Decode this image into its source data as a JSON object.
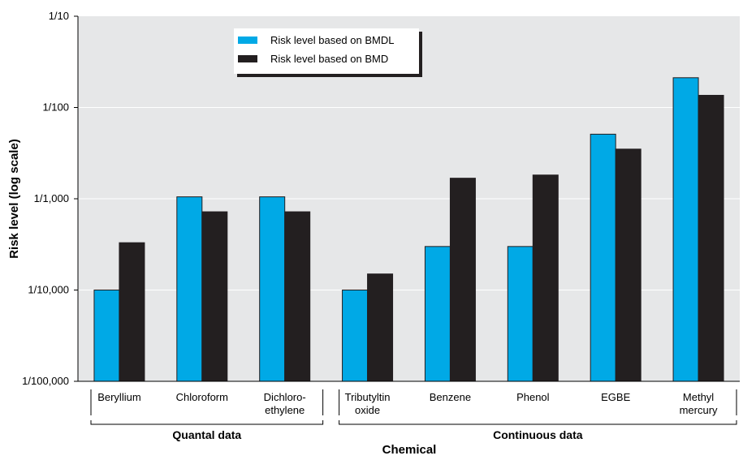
{
  "chart_data": {
    "type": "bar",
    "scale": "log",
    "title": "",
    "xlabel": "Chemical",
    "ylabel": "Risk level (log scale)",
    "ylim": [
      1e-05,
      0.1
    ],
    "y_ticks": [
      {
        "value": 0.1,
        "label": "1/10"
      },
      {
        "value": 0.01,
        "label": "1/100"
      },
      {
        "value": 0.001,
        "label": "1/1,000"
      },
      {
        "value": 0.0001,
        "label": "1/10,000"
      },
      {
        "value": 1e-05,
        "label": "1/100,000"
      }
    ],
    "categories": [
      [
        "Beryllium"
      ],
      [
        "Chloroform"
      ],
      [
        "Dichloro-",
        "ethylene"
      ],
      [
        "Tributyltin",
        "oxide"
      ],
      [
        "Benzene"
      ],
      [
        "Phenol"
      ],
      [
        "EGBE"
      ],
      [
        "Methyl",
        "mercury"
      ]
    ],
    "series": [
      {
        "name": "Risk level based on BMDL",
        "color": "#00a9e6",
        "values": [
          0.0001,
          0.00105,
          0.00105,
          0.0001,
          0.0003,
          0.0003,
          0.0051,
          0.0212
        ]
      },
      {
        "name": "Risk level based on BMD",
        "color": "#231f20",
        "values": [
          0.00033,
          0.00072,
          0.00072,
          0.00015,
          0.00168,
          0.00182,
          0.0035,
          0.0136
        ]
      }
    ],
    "groups": [
      {
        "label": "Quantal data",
        "category_range": [
          0,
          2
        ]
      },
      {
        "label": "Continuous data",
        "category_range": [
          3,
          7
        ]
      }
    ],
    "grid": true,
    "legend_position": "top-left"
  }
}
